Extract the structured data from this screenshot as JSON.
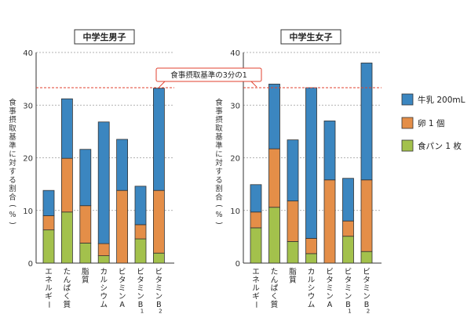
{
  "chart_data": [
    {
      "type": "bar",
      "stacked": true,
      "title": "中学生男子",
      "ylabel": "食事摂取基準に対する割合(%)",
      "ylim": [
        0,
        40
      ],
      "yticks": [
        0,
        10,
        20,
        30,
        40
      ],
      "grid": true,
      "categories": [
        "エネルギー",
        "たんぱく質",
        "脂質",
        "カルシウム",
        "ビタミンA",
        "ビタミンB1",
        "ビタミンB2"
      ],
      "series": [
        {
          "name": "食パン 1 枚",
          "values": [
            6.3,
            9.7,
            3.8,
            1.4,
            0,
            4.6,
            1.9
          ]
        },
        {
          "name": "卵 1 個",
          "values": [
            2.7,
            10.2,
            7.1,
            2.3,
            13.8,
            2.7,
            11.9
          ]
        },
        {
          "name": "牛乳 200mL",
          "values": [
            4.8,
            11.3,
            10.7,
            23.1,
            9.7,
            7.3,
            19.4
          ]
        }
      ]
    },
    {
      "type": "bar",
      "stacked": true,
      "title": "中学生女子",
      "ylabel": "食事摂取基準に対する割合(%)",
      "ylim": [
        0,
        40
      ],
      "yticks": [
        0,
        10,
        20,
        30,
        40
      ],
      "grid": true,
      "categories": [
        "エネルギー",
        "たんぱく質",
        "脂質",
        "カルシウム",
        "ビタミンA",
        "ビタミンB1",
        "ビタミンB2"
      ],
      "series": [
        {
          "name": "食パン 1 枚",
          "values": [
            6.7,
            10.6,
            4.1,
            1.8,
            0,
            5.1,
            2.2
          ]
        },
        {
          "name": "卵 1 個",
          "values": [
            3.0,
            11.1,
            7.7,
            2.9,
            15.8,
            2.9,
            13.6
          ]
        },
        {
          "name": "牛乳 200mL",
          "values": [
            5.2,
            12.3,
            11.6,
            28.6,
            11.2,
            8.1,
            22.2
          ]
        }
      ]
    }
  ],
  "reference_line": {
    "value": 33.3,
    "label": "食事摂取基準の3分の1"
  },
  "legend": {
    "placement": "right",
    "items": [
      {
        "label": "牛乳 200mL",
        "color": "#3b86c0"
      },
      {
        "label": "卵 1 個",
        "color": "#e48e48"
      },
      {
        "label": "食パン 1 枚",
        "color": "#a3c14c"
      }
    ]
  },
  "colors": {
    "milk": "#3b86c0",
    "egg": "#e48e48",
    "bread": "#a3c14c",
    "reference": "#e0412f",
    "grid": "#9a9a9a"
  },
  "tick_text": {
    "エネルギー": "エネルギー",
    "たんぱく質": "たんぱく質",
    "脂質": "脂質",
    "カルシウム": "カルシウム",
    "ビタミンA": "ビタミンA",
    "ビタミンB1": "ビタミンB1",
    "ビタミンB2": "ビタミンB2"
  }
}
